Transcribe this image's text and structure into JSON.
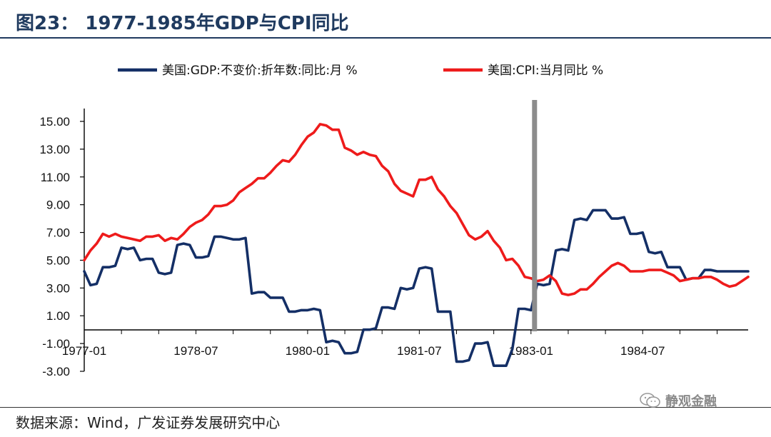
{
  "header": {
    "title": "图23：  1977-1985年GDP与CPI同比"
  },
  "footer": {
    "source": "数据来源：Wind，广发证券发展研究中心",
    "watermark": "静观金融"
  },
  "colors": {
    "gdp": "#142f66",
    "cpi": "#ee1b1b",
    "marker": "#8c8c8c",
    "title": "#1f3a5f"
  },
  "chart_data": {
    "type": "line",
    "title": "",
    "xlabel": "",
    "ylabel": "",
    "ylim": [
      -3,
      15
    ],
    "yticks": [
      "-3.00",
      "-1.00",
      "1.00",
      "3.00",
      "5.00",
      "7.00",
      "9.00",
      "11.00",
      "13.00",
      "15.00"
    ],
    "xlim": [
      "1977-01",
      "1985-12"
    ],
    "xticks": [
      "1977-01",
      "1978-07",
      "1980-01",
      "1981-07",
      "1983-01",
      "1984-07"
    ],
    "grid": false,
    "legend_position": "top",
    "vertical_marker": "1983-01",
    "series": [
      {
        "name": "美国:GDP:不变价:折年数:同比:月 %",
        "color": "#142f66",
        "points": [
          [
            "1977-01",
            4.2
          ],
          [
            "1977-02",
            3.2
          ],
          [
            "1977-03",
            3.3
          ],
          [
            "1977-04",
            4.5
          ],
          [
            "1977-05",
            4.5
          ],
          [
            "1977-06",
            4.6
          ],
          [
            "1977-07",
            5.9
          ],
          [
            "1977-08",
            5.8
          ],
          [
            "1977-09",
            5.9
          ],
          [
            "1977-10",
            5.0
          ],
          [
            "1977-11",
            5.1
          ],
          [
            "1977-12",
            5.1
          ],
          [
            "1978-01",
            4.1
          ],
          [
            "1978-02",
            4.0
          ],
          [
            "1978-03",
            4.1
          ],
          [
            "1978-04",
            6.1
          ],
          [
            "1978-05",
            6.2
          ],
          [
            "1978-06",
            6.1
          ],
          [
            "1978-07",
            5.2
          ],
          [
            "1978-08",
            5.2
          ],
          [
            "1978-09",
            5.3
          ],
          [
            "1978-10",
            6.7
          ],
          [
            "1978-11",
            6.7
          ],
          [
            "1978-12",
            6.6
          ],
          [
            "1979-01",
            6.5
          ],
          [
            "1979-02",
            6.5
          ],
          [
            "1979-03",
            6.6
          ],
          [
            "1979-04",
            2.6
          ],
          [
            "1979-05",
            2.7
          ],
          [
            "1979-06",
            2.7
          ],
          [
            "1979-07",
            2.3
          ],
          [
            "1979-08",
            2.3
          ],
          [
            "1979-09",
            2.3
          ],
          [
            "1979-10",
            1.3
          ],
          [
            "1979-11",
            1.3
          ],
          [
            "1979-12",
            1.4
          ],
          [
            "1980-01",
            1.4
          ],
          [
            "1980-02",
            1.5
          ],
          [
            "1980-03",
            1.4
          ],
          [
            "1980-04",
            -0.9
          ],
          [
            "1980-05",
            -0.8
          ],
          [
            "1980-06",
            -0.9
          ],
          [
            "1980-07",
            -1.7
          ],
          [
            "1980-08",
            -1.7
          ],
          [
            "1980-09",
            -1.6
          ],
          [
            "1980-10",
            0.0
          ],
          [
            "1980-11",
            0.0
          ],
          [
            "1980-12",
            0.1
          ],
          [
            "1981-01",
            1.6
          ],
          [
            "1981-02",
            1.6
          ],
          [
            "1981-03",
            1.5
          ],
          [
            "1981-04",
            3.0
          ],
          [
            "1981-05",
            2.9
          ],
          [
            "1981-06",
            3.0
          ],
          [
            "1981-07",
            4.4
          ],
          [
            "1981-08",
            4.5
          ],
          [
            "1981-09",
            4.4
          ],
          [
            "1981-10",
            1.3
          ],
          [
            "1981-11",
            1.3
          ],
          [
            "1981-12",
            1.3
          ],
          [
            "1982-01",
            -2.3
          ],
          [
            "1982-02",
            -2.3
          ],
          [
            "1982-03",
            -2.2
          ],
          [
            "1982-04",
            -1.0
          ],
          [
            "1982-05",
            -1.0
          ],
          [
            "1982-06",
            -0.9
          ],
          [
            "1982-07",
            -2.6
          ],
          [
            "1982-08",
            -2.6
          ],
          [
            "1982-09",
            -2.6
          ],
          [
            "1982-10",
            -1.4
          ],
          [
            "1982-11",
            1.5
          ],
          [
            "1982-12",
            1.5
          ],
          [
            "1983-01",
            1.4
          ],
          [
            "1983-02",
            3.3
          ],
          [
            "1983-03",
            3.2
          ],
          [
            "1983-04",
            3.3
          ],
          [
            "1983-05",
            5.7
          ],
          [
            "1983-06",
            5.8
          ],
          [
            "1983-07",
            5.7
          ],
          [
            "1983-08",
            7.9
          ],
          [
            "1983-09",
            8.0
          ],
          [
            "1983-10",
            7.9
          ],
          [
            "1983-11",
            8.6
          ],
          [
            "1983-12",
            8.6
          ],
          [
            "1984-01",
            8.6
          ],
          [
            "1984-02",
            8.0
          ],
          [
            "1984-03",
            8.0
          ],
          [
            "1984-04",
            8.1
          ],
          [
            "1984-05",
            6.9
          ],
          [
            "1984-06",
            6.9
          ],
          [
            "1984-07",
            7.0
          ],
          [
            "1984-08",
            5.6
          ],
          [
            "1984-09",
            5.5
          ],
          [
            "1984-10",
            5.6
          ],
          [
            "1984-11",
            4.5
          ],
          [
            "1984-12",
            4.5
          ],
          [
            "1985-01",
            4.5
          ],
          [
            "1985-02",
            3.6
          ],
          [
            "1985-03",
            3.7
          ],
          [
            "1985-04",
            3.7
          ],
          [
            "1985-05",
            4.3
          ],
          [
            "1985-06",
            4.3
          ],
          [
            "1985-07",
            4.2
          ],
          [
            "1985-08",
            4.2
          ],
          [
            "1985-09",
            4.2
          ],
          [
            "1985-10",
            4.2
          ],
          [
            "1985-11",
            4.2
          ],
          [
            "1985-12",
            4.2
          ]
        ]
      },
      {
        "name": "美国:CPI:当月同比 %",
        "color": "#ee1b1b",
        "points": [
          [
            "1977-01",
            5.0
          ],
          [
            "1977-02",
            5.7
          ],
          [
            "1977-03",
            6.2
          ],
          [
            "1977-04",
            6.9
          ],
          [
            "1977-05",
            6.7
          ],
          [
            "1977-06",
            6.9
          ],
          [
            "1977-07",
            6.7
          ],
          [
            "1977-08",
            6.6
          ],
          [
            "1977-09",
            6.5
          ],
          [
            "1977-10",
            6.4
          ],
          [
            "1977-11",
            6.7
          ],
          [
            "1977-12",
            6.7
          ],
          [
            "1978-01",
            6.8
          ],
          [
            "1978-02",
            6.4
          ],
          [
            "1978-03",
            6.6
          ],
          [
            "1978-04",
            6.5
          ],
          [
            "1978-05",
            6.9
          ],
          [
            "1978-06",
            7.4
          ],
          [
            "1978-07",
            7.7
          ],
          [
            "1978-08",
            7.9
          ],
          [
            "1978-09",
            8.3
          ],
          [
            "1978-10",
            8.9
          ],
          [
            "1978-11",
            8.9
          ],
          [
            "1978-12",
            9.0
          ],
          [
            "1979-01",
            9.3
          ],
          [
            "1979-02",
            9.9
          ],
          [
            "1979-03",
            10.2
          ],
          [
            "1979-04",
            10.5
          ],
          [
            "1979-05",
            10.9
          ],
          [
            "1979-06",
            10.9
          ],
          [
            "1979-07",
            11.3
          ],
          [
            "1979-08",
            11.8
          ],
          [
            "1979-09",
            12.2
          ],
          [
            "1979-10",
            12.1
          ],
          [
            "1979-11",
            12.6
          ],
          [
            "1979-12",
            13.3
          ],
          [
            "1980-01",
            13.9
          ],
          [
            "1980-02",
            14.2
          ],
          [
            "1980-03",
            14.8
          ],
          [
            "1980-04",
            14.7
          ],
          [
            "1980-05",
            14.4
          ],
          [
            "1980-06",
            14.4
          ],
          [
            "1980-07",
            13.1
          ],
          [
            "1980-08",
            12.9
          ],
          [
            "1980-09",
            12.6
          ],
          [
            "1980-10",
            12.8
          ],
          [
            "1980-11",
            12.6
          ],
          [
            "1980-12",
            12.5
          ],
          [
            "1981-01",
            11.8
          ],
          [
            "1981-02",
            11.4
          ],
          [
            "1981-03",
            10.5
          ],
          [
            "1981-04",
            10.0
          ],
          [
            "1981-05",
            9.8
          ],
          [
            "1981-06",
            9.6
          ],
          [
            "1981-07",
            10.8
          ],
          [
            "1981-08",
            10.8
          ],
          [
            "1981-09",
            11.0
          ],
          [
            "1981-10",
            10.1
          ],
          [
            "1981-11",
            9.6
          ],
          [
            "1981-12",
            8.9
          ],
          [
            "1982-01",
            8.4
          ],
          [
            "1982-02",
            7.6
          ],
          [
            "1982-03",
            6.8
          ],
          [
            "1982-04",
            6.5
          ],
          [
            "1982-05",
            6.7
          ],
          [
            "1982-06",
            7.1
          ],
          [
            "1982-07",
            6.4
          ],
          [
            "1982-08",
            5.9
          ],
          [
            "1982-09",
            5.0
          ],
          [
            "1982-10",
            5.1
          ],
          [
            "1982-11",
            4.6
          ],
          [
            "1982-12",
            3.8
          ],
          [
            "1983-01",
            3.7
          ],
          [
            "1983-02",
            3.5
          ],
          [
            "1983-03",
            3.6
          ],
          [
            "1983-04",
            3.9
          ],
          [
            "1983-05",
            3.5
          ],
          [
            "1983-06",
            2.6
          ],
          [
            "1983-07",
            2.5
          ],
          [
            "1983-08",
            2.6
          ],
          [
            "1983-09",
            2.9
          ],
          [
            "1983-10",
            2.9
          ],
          [
            "1983-11",
            3.3
          ],
          [
            "1983-12",
            3.8
          ],
          [
            "1984-01",
            4.2
          ],
          [
            "1984-02",
            4.6
          ],
          [
            "1984-03",
            4.8
          ],
          [
            "1984-04",
            4.6
          ],
          [
            "1984-05",
            4.2
          ],
          [
            "1984-06",
            4.2
          ],
          [
            "1984-07",
            4.2
          ],
          [
            "1984-08",
            4.3
          ],
          [
            "1984-09",
            4.3
          ],
          [
            "1984-10",
            4.3
          ],
          [
            "1984-11",
            4.1
          ],
          [
            "1984-12",
            3.9
          ],
          [
            "1985-01",
            3.5
          ],
          [
            "1985-02",
            3.6
          ],
          [
            "1985-03",
            3.7
          ],
          [
            "1985-04",
            3.7
          ],
          [
            "1985-05",
            3.8
          ],
          [
            "1985-06",
            3.8
          ],
          [
            "1985-07",
            3.6
          ],
          [
            "1985-08",
            3.3
          ],
          [
            "1985-09",
            3.1
          ],
          [
            "1985-10",
            3.2
          ],
          [
            "1985-11",
            3.5
          ],
          [
            "1985-12",
            3.8
          ]
        ]
      }
    ]
  }
}
